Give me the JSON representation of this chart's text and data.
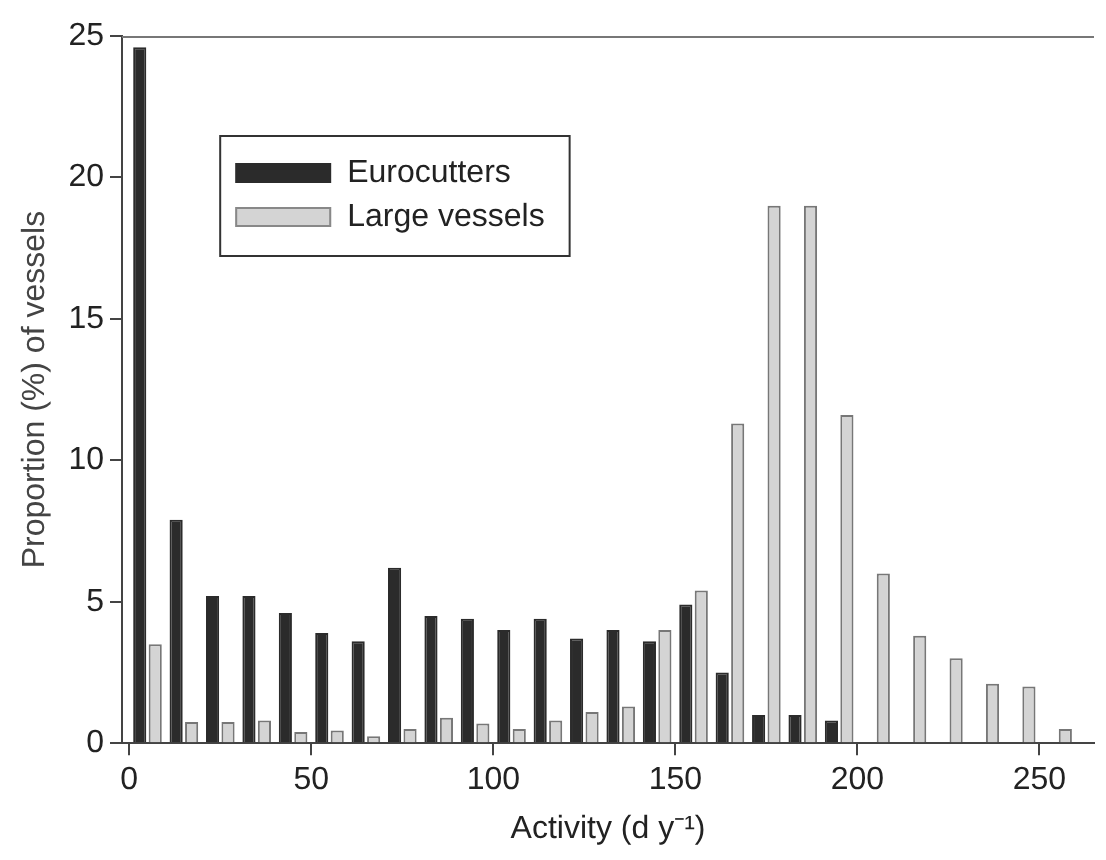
{
  "chart_data": {
    "type": "bar",
    "xlabel": "Activity (d y⁻¹)",
    "ylabel": "Proportion (%) of vessels",
    "x": [
      5,
      15,
      25,
      35,
      45,
      55,
      65,
      75,
      85,
      95,
      105,
      115,
      125,
      135,
      145,
      155,
      165,
      175,
      185,
      195,
      205,
      215,
      225,
      235,
      245,
      255
    ],
    "xlim": [
      -2,
      265
    ],
    "xticks": [
      0,
      50,
      100,
      150,
      200,
      250
    ],
    "ylim": [
      0,
      25
    ],
    "yticks": [
      0,
      5,
      10,
      15,
      20,
      25
    ],
    "series": [
      {
        "name": "Eurocutters",
        "color": "#2b2b2b",
        "values": [
          24.6,
          7.9,
          5.2,
          5.2,
          4.6,
          3.9,
          3.6,
          6.2,
          4.5,
          4.4,
          4.0,
          4.4,
          3.7,
          4.0,
          3.6,
          4.9,
          2.5,
          1.0,
          1.0,
          0.8,
          0,
          0,
          0,
          0,
          0,
          0
        ]
      },
      {
        "name": "Large vessels",
        "color": "#d4d4d4",
        "values": [
          3.5,
          0.75,
          0.75,
          0.8,
          0.4,
          0.45,
          0.25,
          0.5,
          0.9,
          0.7,
          0.5,
          0.8,
          1.1,
          1.3,
          4.0,
          5.4,
          11.3,
          19.0,
          19.0,
          11.6,
          6.0,
          3.8,
          3.0,
          2.1,
          2.0,
          0.5
        ]
      }
    ],
    "grid": false,
    "legend": "top left"
  }
}
